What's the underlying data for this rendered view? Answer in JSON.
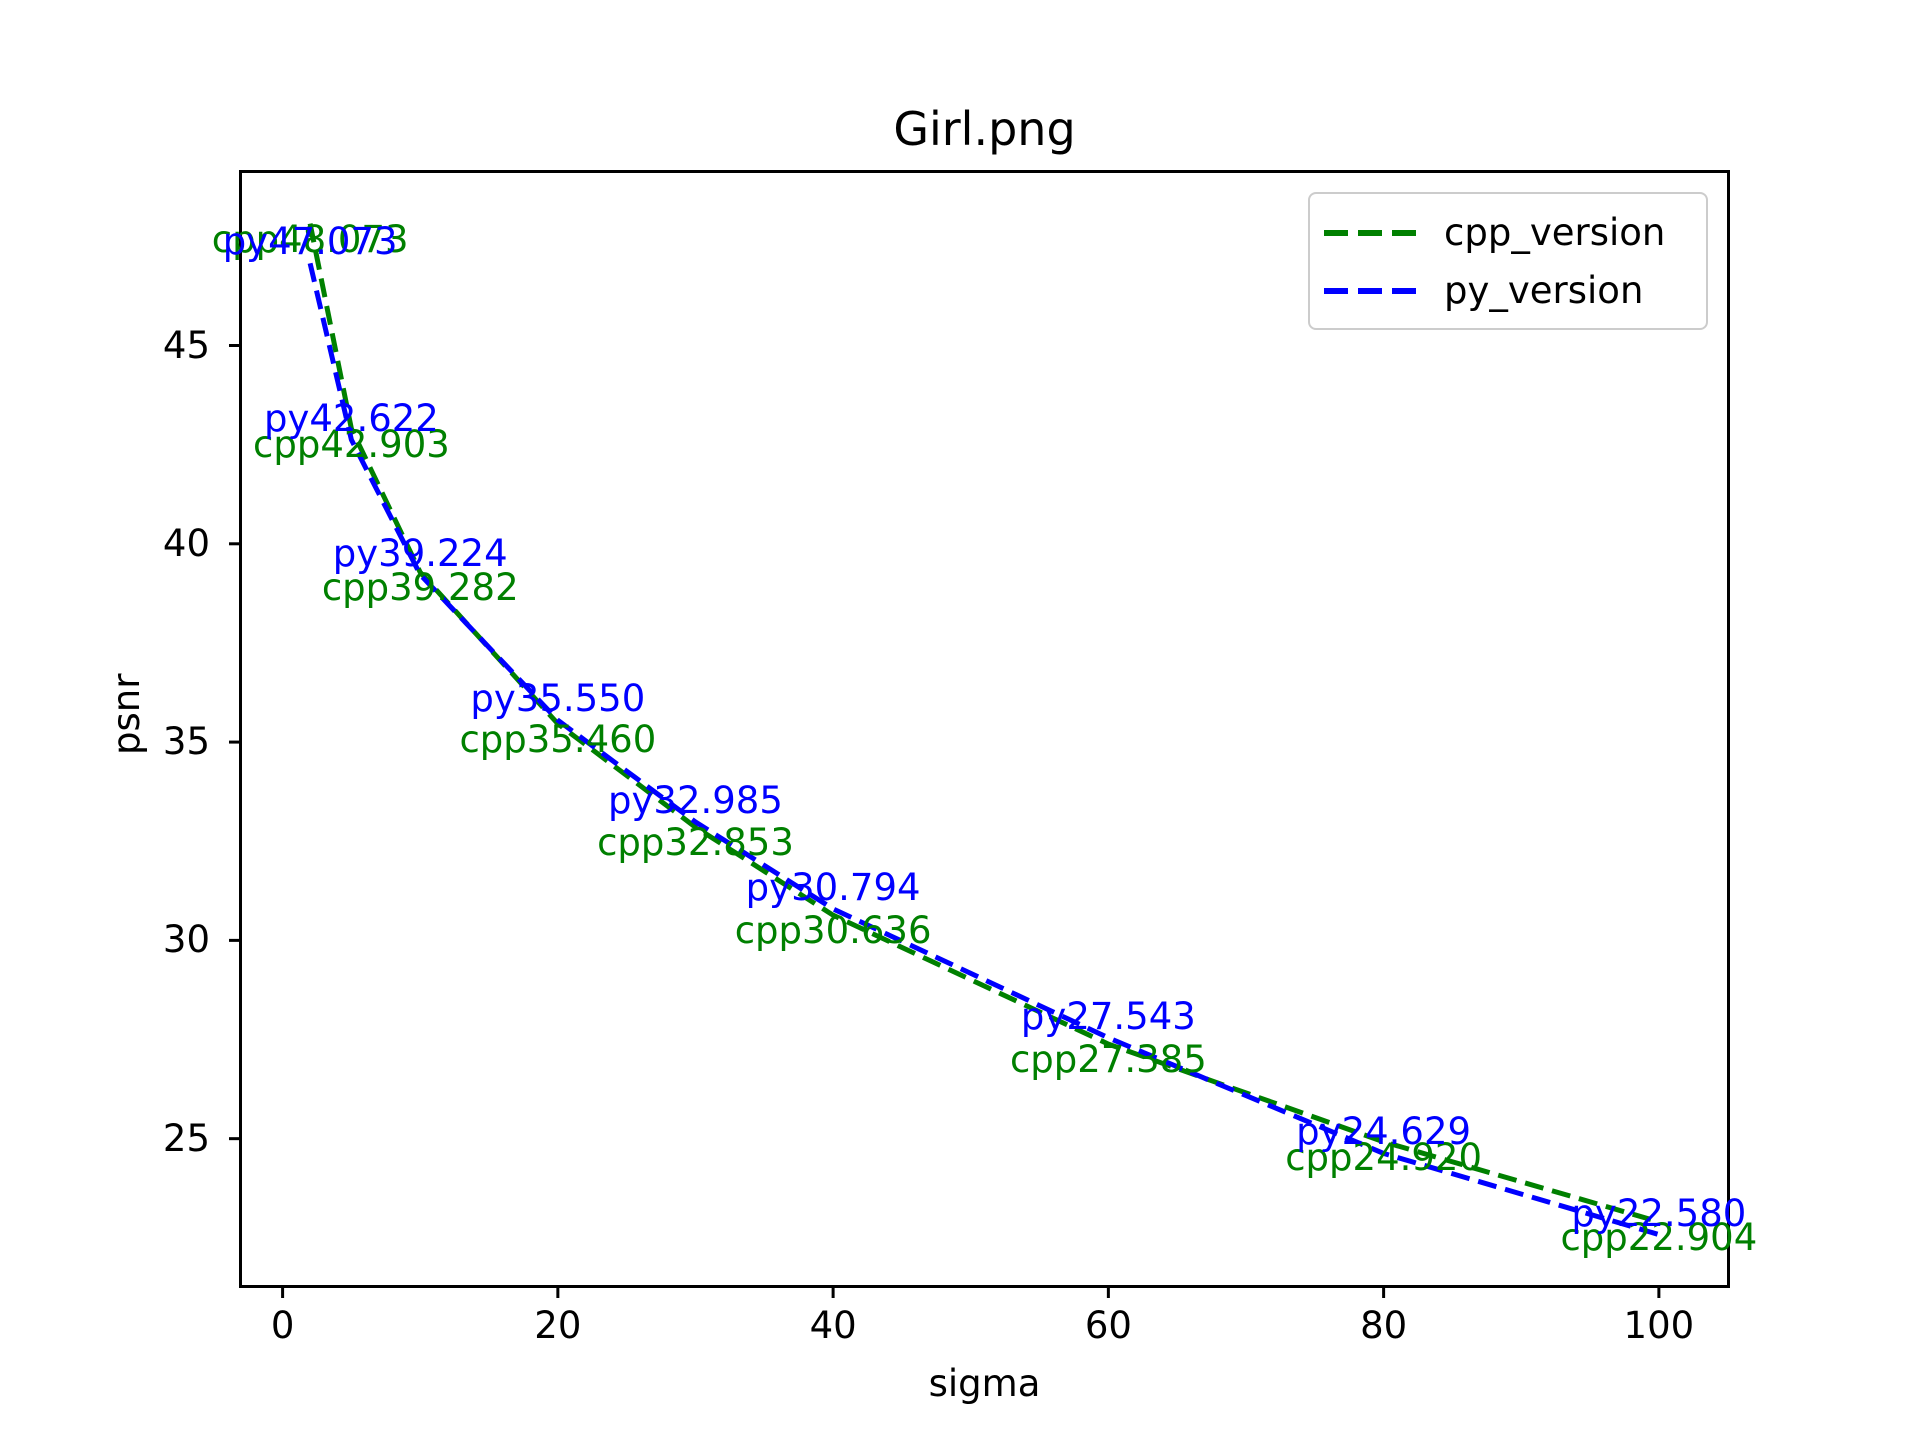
{
  "chart_data": {
    "type": "line",
    "title": "Girl.png",
    "xlabel": "sigma",
    "ylabel": "psnr",
    "x": [
      2,
      5,
      10,
      20,
      30,
      40,
      60,
      80,
      100
    ],
    "series": [
      {
        "name": "cpp_version",
        "color": "#008000",
        "line_style": "dashed",
        "annotation_side": "below",
        "values": [
          48.073,
          42.903,
          39.282,
          35.46,
          32.853,
          30.636,
          27.385,
          24.92,
          22.904
        ],
        "annotations": [
          "cpp48.073",
          "cpp42.903",
          "cpp39.282",
          "cpp35.460",
          "cpp32.853",
          "cpp30.636",
          "cpp27.385",
          "cpp24.920",
          "cpp22.904"
        ]
      },
      {
        "name": "py_version",
        "color": "#0000ff",
        "line_style": "dashed",
        "annotation_side": "above",
        "values": [
          47.073,
          42.622,
          39.224,
          35.55,
          32.985,
          30.794,
          27.543,
          24.629,
          22.58
        ],
        "annotations": [
          "py47.073",
          "py42.622",
          "py39.224",
          "py35.550",
          "py32.985",
          "py30.794",
          "py27.543",
          "py24.629",
          "py22.580"
        ]
      }
    ],
    "x_ticks": [
      0,
      20,
      40,
      60,
      80,
      100
    ],
    "y_ticks": [
      25,
      30,
      35,
      40,
      45
    ],
    "xlim": [
      -2.95,
      104.95
    ],
    "ylim": [
      21.31,
      49.35
    ],
    "grid": false,
    "legend": {
      "position": "upper right",
      "entries": [
        "cpp_version",
        "py_version"
      ]
    }
  }
}
